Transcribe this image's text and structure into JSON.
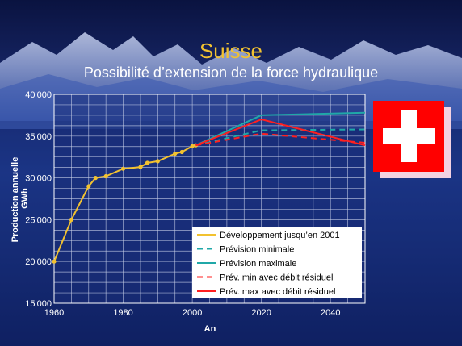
{
  "header": {
    "title": "Suisse",
    "subtitle": "Possibilité d’extension de la force hydraulique"
  },
  "flag": {
    "name": "switzerland-flag",
    "colors": {
      "field": "#ff0000",
      "cross": "#ffffff"
    }
  },
  "colors": {
    "development": "#f2c230",
    "prevision_min": "#20a8a8",
    "prevision_max": "#20a8a8",
    "residuel_min": "#ff2020",
    "residuel_max": "#ff2020",
    "grid": "#c8d0e8",
    "tick_text": "#ffffff"
  },
  "chart_data": {
    "type": "line",
    "title": "",
    "xlabel": "An",
    "ylabel": "Production annuelle GWh",
    "ylabel_lines": [
      "Production annuelle",
      "GWh"
    ],
    "xlim": [
      1960,
      2050
    ],
    "ylim": [
      15000,
      40000
    ],
    "xticks": [
      1960,
      1980,
      2000,
      2020,
      2040
    ],
    "yticks": [
      15000,
      20000,
      25000,
      30000,
      35000,
      40000
    ],
    "xtick_labels": [
      "1960",
      "1980",
      "2000",
      "2020",
      "2040"
    ],
    "ytick_labels": [
      "15'000",
      "20'000",
      "25'000",
      "30'000",
      "35'000",
      "40'000"
    ],
    "grid": true,
    "legend_position": "bottom-right",
    "series": [
      {
        "name": "Développement jusqu’en 2001",
        "style": "solid",
        "markers": true,
        "x": [
          1960,
          1965,
          1970,
          1972,
          1975,
          1980,
          1985,
          1987,
          1990,
          1995,
          1997,
          2000,
          2001
        ],
        "y": [
          20000,
          25000,
          29000,
          30000,
          30200,
          31100,
          31300,
          31800,
          32000,
          32900,
          33100,
          33800,
          33900
        ]
      },
      {
        "name": "Prévision minimale",
        "style": "dashed",
        "markers": false,
        "x": [
          2001,
          2020,
          2050
        ],
        "y": [
          33900,
          35700,
          35800
        ]
      },
      {
        "name": "Prévision maximale",
        "style": "solid",
        "markers": false,
        "x": [
          2001,
          2020,
          2050
        ],
        "y": [
          33900,
          37500,
          37800
        ]
      },
      {
        "name": "Prév. min avec débit résiduel",
        "style": "dashed",
        "markers": false,
        "x": [
          2001,
          2020,
          2050
        ],
        "y": [
          33900,
          35300,
          34200
        ]
      },
      {
        "name": "Prév. max avec débit résiduel",
        "style": "solid",
        "markers": false,
        "x": [
          2001,
          2020,
          2050
        ],
        "y": [
          33900,
          37000,
          33900
        ]
      }
    ]
  }
}
